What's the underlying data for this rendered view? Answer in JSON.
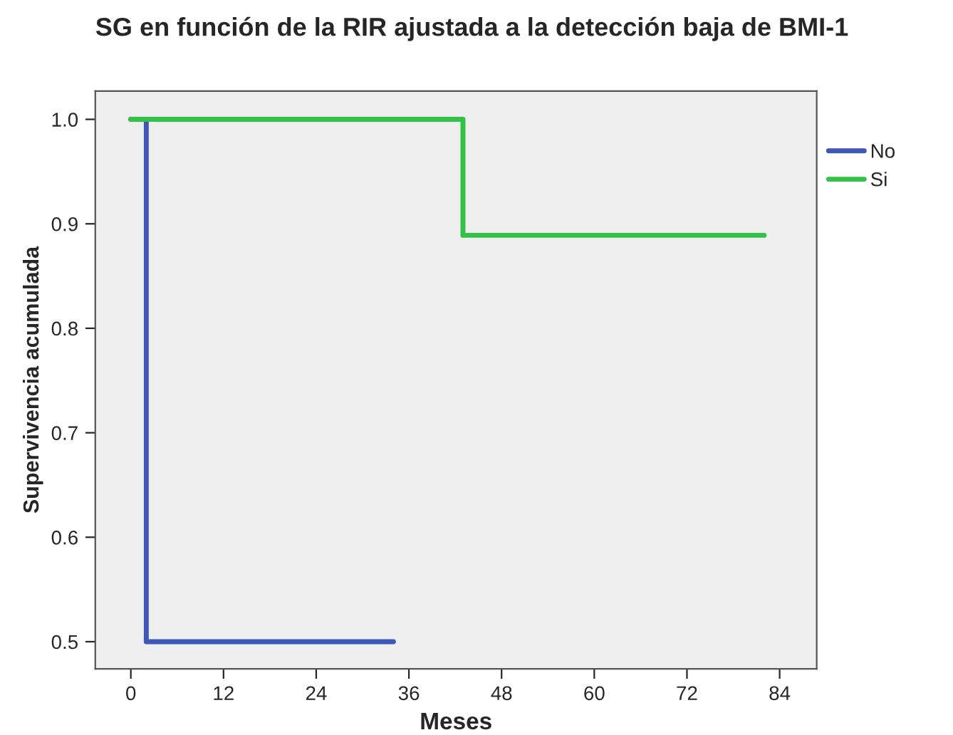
{
  "chart_data": {
    "type": "step",
    "title": "SG en función de la RIR ajustada a la detección baja de BMI-1",
    "xlabel": "Meses",
    "ylabel": "Supervivencia acumulada",
    "series": [
      {
        "name": "No",
        "color": "#3f58b5",
        "x": [
          0,
          2,
          34
        ],
        "values": [
          1.0,
          0.5,
          0.5
        ]
      },
      {
        "name": "Si",
        "color": "#33c14a",
        "x": [
          0,
          43,
          82
        ],
        "values": [
          1.0,
          0.889,
          0.889
        ]
      }
    ],
    "xlim": [
      -4.6,
      88.8
    ],
    "xticks": [
      0,
      12,
      24,
      36,
      48,
      60,
      72,
      84
    ],
    "ylim": [
      0.474,
      1.027
    ],
    "yticks": [
      {
        "value": 0.5,
        "label": "0.5"
      },
      {
        "value": 0.6,
        "label": "0.6"
      },
      {
        "value": 0.7,
        "label": "0.7"
      },
      {
        "value": 0.8,
        "label": "0.8"
      },
      {
        "value": 0.9,
        "label": "0.9"
      },
      {
        "value": 1.0,
        "label": "1.0"
      }
    ],
    "legend": "right",
    "grid": false
  }
}
